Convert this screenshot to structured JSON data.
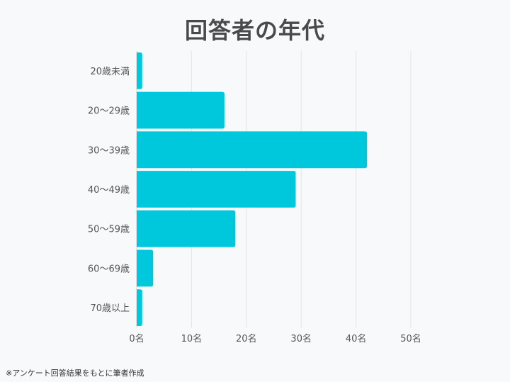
{
  "title": "回答者の年代",
  "footnote": "※アンケート回答結果をもとに筆者作成",
  "chart_data": {
    "type": "bar",
    "orientation": "horizontal",
    "categories": [
      "20歳未満",
      "20〜29歳",
      "30〜39歳",
      "40〜49歳",
      "50〜59歳",
      "60〜69歳",
      "70歳以上"
    ],
    "values": [
      1,
      16,
      42,
      29,
      18,
      3,
      1
    ],
    "xlim": [
      0,
      50
    ],
    "xticks": [
      "0名",
      "10名",
      "20名",
      "30名",
      "40名",
      "50名"
    ],
    "grid": true,
    "bar_color": "#00c8dc"
  }
}
